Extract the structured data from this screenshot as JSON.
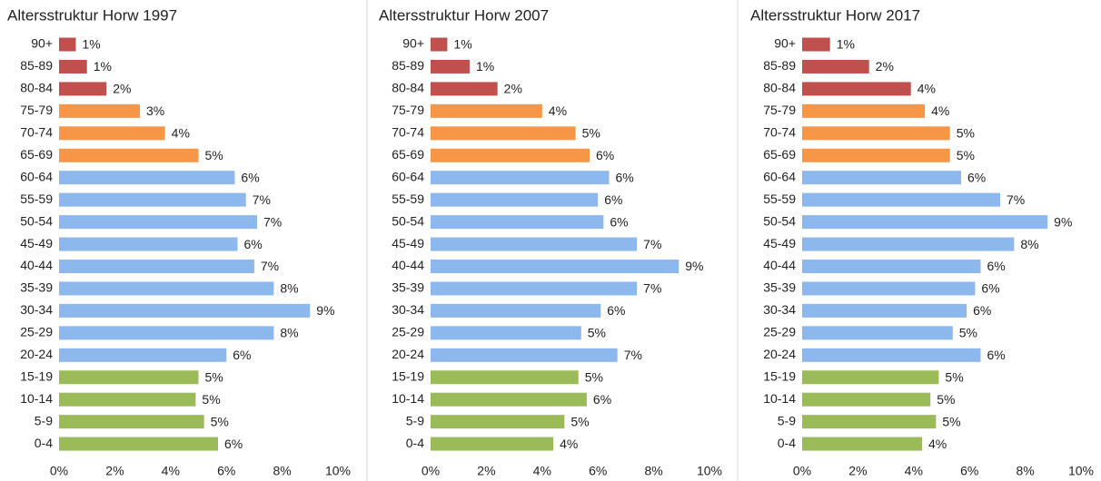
{
  "chart_data": [
    {
      "type": "bar",
      "orientation": "horizontal",
      "title": "Altersstruktur Horw 1997",
      "categories": [
        "90+",
        "85-89",
        "80-84",
        "75-79",
        "70-74",
        "65-69",
        "60-64",
        "55-59",
        "50-54",
        "45-49",
        "40-44",
        "35-39",
        "30-34",
        "25-29",
        "20-24",
        "15-19",
        "10-14",
        "5-9",
        "0-4"
      ],
      "values": [
        0.6,
        1.0,
        1.7,
        2.9,
        3.8,
        5.0,
        6.3,
        6.7,
        7.1,
        6.4,
        7.0,
        7.7,
        9.0,
        7.7,
        6.0,
        5.0,
        4.9,
        5.2,
        5.7
      ],
      "value_labels": [
        "1%",
        "1%",
        "2%",
        "3%",
        "4%",
        "5%",
        "6%",
        "7%",
        "7%",
        "6%",
        "7%",
        "8%",
        "9%",
        "8%",
        "6%",
        "5%",
        "5%",
        "5%",
        "6%"
      ],
      "colors": [
        "#c0504d",
        "#c0504d",
        "#c0504d",
        "#f79646",
        "#f79646",
        "#f79646",
        "#8cb8ee",
        "#8cb8ee",
        "#8cb8ee",
        "#8cb8ee",
        "#8cb8ee",
        "#8cb8ee",
        "#8cb8ee",
        "#8cb8ee",
        "#8cb8ee",
        "#9bbb59",
        "#9bbb59",
        "#9bbb59",
        "#9bbb59"
      ],
      "xlim": [
        0,
        10
      ],
      "xticks": [
        {
          "value": 0,
          "label": "0%"
        },
        {
          "value": 2,
          "label": "2%"
        },
        {
          "value": 4,
          "label": "4%"
        },
        {
          "value": 6,
          "label": "6%"
        },
        {
          "value": 8,
          "label": "8%"
        },
        {
          "value": 10,
          "label": "10%"
        }
      ]
    },
    {
      "type": "bar",
      "orientation": "horizontal",
      "title": "Altersstruktur Horw 2007",
      "categories": [
        "90+",
        "85-89",
        "80-84",
        "75-79",
        "70-74",
        "65-69",
        "60-64",
        "55-59",
        "50-54",
        "45-49",
        "40-44",
        "35-39",
        "30-34",
        "25-29",
        "20-24",
        "15-19",
        "10-14",
        "5-9",
        "0-4"
      ],
      "values": [
        0.6,
        1.4,
        2.4,
        4.0,
        5.2,
        5.7,
        6.4,
        6.0,
        6.2,
        7.4,
        8.9,
        7.4,
        6.1,
        5.4,
        6.7,
        5.3,
        5.6,
        4.8,
        4.4
      ],
      "value_labels": [
        "1%",
        "1%",
        "2%",
        "4%",
        "5%",
        "6%",
        "6%",
        "6%",
        "6%",
        "7%",
        "9%",
        "7%",
        "6%",
        "5%",
        "7%",
        "5%",
        "6%",
        "5%",
        "4%"
      ],
      "colors": [
        "#c0504d",
        "#c0504d",
        "#c0504d",
        "#f79646",
        "#f79646",
        "#f79646",
        "#8cb8ee",
        "#8cb8ee",
        "#8cb8ee",
        "#8cb8ee",
        "#8cb8ee",
        "#8cb8ee",
        "#8cb8ee",
        "#8cb8ee",
        "#8cb8ee",
        "#9bbb59",
        "#9bbb59",
        "#9bbb59",
        "#9bbb59"
      ],
      "xlim": [
        0,
        10
      ],
      "xticks": [
        {
          "value": 0,
          "label": "0%"
        },
        {
          "value": 2,
          "label": "2%"
        },
        {
          "value": 4,
          "label": "4%"
        },
        {
          "value": 6,
          "label": "6%"
        },
        {
          "value": 8,
          "label": "8%"
        },
        {
          "value": 10,
          "label": "10%"
        }
      ]
    },
    {
      "type": "bar",
      "orientation": "horizontal",
      "title": "Altersstruktur Horw 2017",
      "categories": [
        "90+",
        "85-89",
        "80-84",
        "75-79",
        "70-74",
        "65-69",
        "60-64",
        "55-59",
        "50-54",
        "45-49",
        "40-44",
        "35-39",
        "30-34",
        "25-29",
        "20-24",
        "15-19",
        "10-14",
        "5-9",
        "0-4"
      ],
      "values": [
        1.0,
        2.4,
        3.9,
        4.4,
        5.3,
        5.3,
        5.7,
        7.1,
        8.8,
        7.6,
        6.4,
        6.2,
        5.9,
        5.4,
        6.4,
        4.9,
        4.6,
        4.8,
        4.3
      ],
      "value_labels": [
        "1%",
        "2%",
        "4%",
        "4%",
        "5%",
        "5%",
        "6%",
        "7%",
        "9%",
        "8%",
        "6%",
        "6%",
        "6%",
        "5%",
        "6%",
        "5%",
        "5%",
        "5%",
        "4%"
      ],
      "colors": [
        "#c0504d",
        "#c0504d",
        "#c0504d",
        "#f79646",
        "#f79646",
        "#f79646",
        "#8cb8ee",
        "#8cb8ee",
        "#8cb8ee",
        "#8cb8ee",
        "#8cb8ee",
        "#8cb8ee",
        "#8cb8ee",
        "#8cb8ee",
        "#8cb8ee",
        "#9bbb59",
        "#9bbb59",
        "#9bbb59",
        "#9bbb59"
      ],
      "xlim": [
        0,
        10
      ],
      "xticks": [
        {
          "value": 0,
          "label": "0%"
        },
        {
          "value": 2,
          "label": "2%"
        },
        {
          "value": 4,
          "label": "4%"
        },
        {
          "value": 6,
          "label": "6%"
        },
        {
          "value": 8,
          "label": "8%"
        },
        {
          "value": 10,
          "label": "10%"
        }
      ]
    }
  ]
}
